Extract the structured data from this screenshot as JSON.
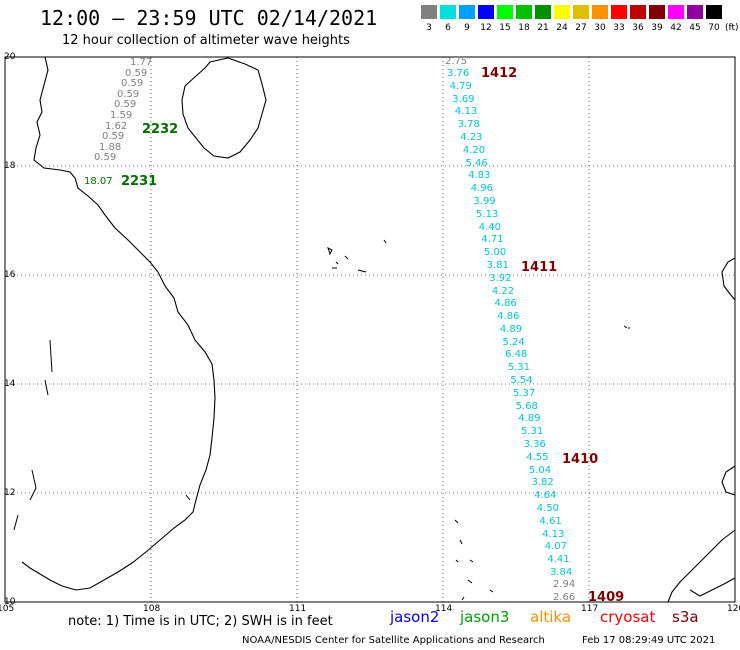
{
  "header": {
    "title": "12:00 – 23:59 UTC 02/14/2021",
    "subtitle": "12 hour collection of altimeter wave heights"
  },
  "legend": {
    "unit": "(ft)",
    "items": [
      {
        "label": "3",
        "color": "#808080"
      },
      {
        "label": "6",
        "color": "#00e0e0"
      },
      {
        "label": "9",
        "color": "#00a0ff"
      },
      {
        "label": "12",
        "color": "#0000ff"
      },
      {
        "label": "15",
        "color": "#00ff00"
      },
      {
        "label": "18",
        "color": "#00c000"
      },
      {
        "label": "21",
        "color": "#009000"
      },
      {
        "label": "24",
        "color": "#ffff00"
      },
      {
        "label": "27",
        "color": "#e0c000"
      },
      {
        "label": "30",
        "color": "#ff9000"
      },
      {
        "label": "33",
        "color": "#ff0000"
      },
      {
        "label": "36",
        "color": "#c00000"
      },
      {
        "label": "39",
        "color": "#800000"
      },
      {
        "label": "42",
        "color": "#ff00ff"
      },
      {
        "label": "45",
        "color": "#9000a0"
      },
      {
        "label": "70",
        "color": "#000000"
      }
    ]
  },
  "axes": {
    "lat_labels": [
      "20",
      "18",
      "16",
      "14",
      "12",
      "10"
    ],
    "lon_labels": [
      "105",
      "108",
      "111",
      "114",
      "117",
      "120"
    ]
  },
  "passes": [
    {
      "id": "2232",
      "color": "#007000"
    },
    {
      "id": "2231",
      "color": "#007000"
    },
    {
      "id": "1412",
      "color": "#800000"
    },
    {
      "id": "1411",
      "color": "#800000"
    },
    {
      "id": "1410",
      "color": "#800000"
    },
    {
      "id": "1409",
      "color": "#800000"
    }
  ],
  "track_west": {
    "gray_values": [
      "1.77",
      "0.59",
      "0.59",
      "0.59",
      "0.59",
      "1.59",
      "1.62",
      "0.59",
      "1.88",
      "0.59"
    ],
    "green_value": "18.07"
  },
  "track_east": {
    "top_gray": "2.75",
    "cyan_values": [
      "3.76",
      "4.79",
      "3.69",
      "4.13",
      "3.78",
      "4.23",
      "4.20",
      "5.46",
      "4.83",
      "4.96",
      "3.99",
      "5.13",
      "4.40",
      "4.71",
      "5.00",
      "3.81",
      "3.92",
      "4.22",
      "4.86",
      "4.86",
      "4.89",
      "5.24",
      "6.48",
      "5.31",
      "5.54",
      "5.37",
      "5.68",
      "4.89",
      "5.31",
      "3.36",
      "4.55",
      "5.04",
      "3.82",
      "4.64",
      "4.50",
      "4.61",
      "4.13",
      "4.07",
      "4.41",
      "3.84"
    ],
    "bottom_gray": [
      "2.94",
      "2.66"
    ]
  },
  "footer": {
    "note": "note:  1) Time is in UTC;  2) SWH is in feet",
    "satellites": [
      {
        "name": "jason2",
        "color": "#0000ff"
      },
      {
        "name": "jason3",
        "color": "#00a000"
      },
      {
        "name": "altika",
        "color": "#ff9000"
      },
      {
        "name": "cryosat",
        "color": "#ff0000"
      },
      {
        "name": "s3a",
        "color": "#800000"
      }
    ],
    "credit": "NOAA/NESDIS Center for Satellite Applications and Research",
    "timestamp": "Feb 17 08:29:49 UTC 2021"
  }
}
